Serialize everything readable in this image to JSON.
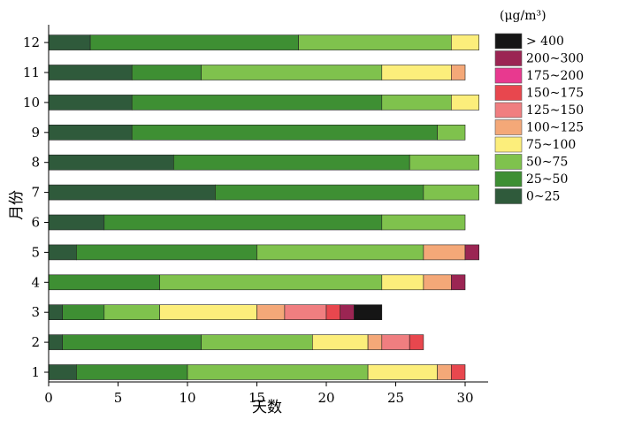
{
  "chart_data": {
    "type": "bar",
    "orientation": "horizontal",
    "stacked": true,
    "title": "",
    "xlabel": "天数",
    "ylabel": "月份",
    "xlim": [
      0,
      32
    ],
    "xticks": [
      0,
      5,
      10,
      15,
      20,
      25,
      30
    ],
    "categories": [
      "1",
      "2",
      "3",
      "4",
      "5",
      "6",
      "7",
      "8",
      "9",
      "10",
      "11",
      "12"
    ],
    "legend_title": "(μg/m³)",
    "legend_position": "right",
    "grid": false,
    "series": [
      {
        "name": "0~25",
        "color": "#2f5a3b",
        "values": [
          2,
          1,
          1,
          0,
          2,
          4,
          12,
          9,
          6,
          6,
          6,
          3
        ]
      },
      {
        "name": "25~50",
        "color": "#3e8f33",
        "values": [
          8,
          10,
          3,
          8,
          13,
          20,
          15,
          17,
          22,
          18,
          5,
          15
        ]
      },
      {
        "name": "50~75",
        "color": "#7fc24d",
        "values": [
          13,
          8,
          4,
          16,
          12,
          6,
          4,
          5,
          2,
          5,
          13,
          11
        ]
      },
      {
        "name": "75~100",
        "color": "#fcee7b",
        "values": [
          5,
          4,
          7,
          3,
          0,
          0,
          0,
          0,
          0,
          2,
          5,
          2
        ]
      },
      {
        "name": "100~125",
        "color": "#f4a878",
        "values": [
          1,
          1,
          2,
          2,
          3,
          0,
          0,
          0,
          0,
          0,
          1,
          0
        ]
      },
      {
        "name": "125~150",
        "color": "#f07e80",
        "values": [
          0,
          2,
          3,
          0,
          0,
          0,
          0,
          0,
          0,
          0,
          0,
          0
        ]
      },
      {
        "name": "150~175",
        "color": "#e8474e",
        "values": [
          1,
          1,
          1,
          0,
          0,
          0,
          0,
          0,
          0,
          0,
          0,
          0
        ]
      },
      {
        "name": "175~200",
        "color": "#e8398f",
        "values": [
          0,
          0,
          0,
          0,
          0,
          0,
          0,
          0,
          0,
          0,
          0,
          0
        ]
      },
      {
        "name": "200~300",
        "color": "#9b2553",
        "values": [
          0,
          0,
          1,
          1,
          1,
          0,
          0,
          0,
          0,
          0,
          0,
          0
        ]
      },
      {
        "name": "> 400",
        "color": "#151515",
        "values": [
          0,
          0,
          2,
          0,
          0,
          0,
          0,
          0,
          0,
          0,
          0,
          0
        ]
      }
    ]
  }
}
